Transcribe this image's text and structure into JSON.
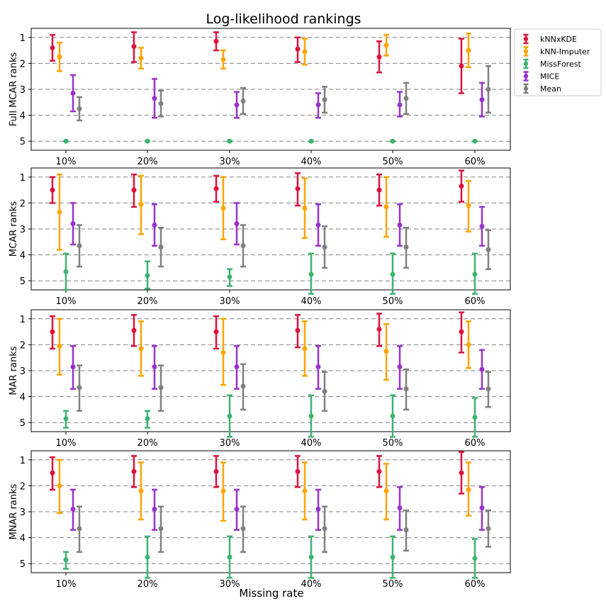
{
  "chart_data": {
    "type": "errorbar",
    "title": "Log-likelihood rankings",
    "xlabel": "Missing rate",
    "categories": [
      "10%",
      "20%",
      "30%",
      "40%",
      "50%",
      "60%"
    ],
    "yticks": [
      "1",
      "2",
      "3",
      "4",
      "5"
    ],
    "ylim": [
      5.35,
      0.65
    ],
    "y_inverted": true,
    "grid": "horizontal dashed",
    "legend_position": "outside top-right",
    "series": [
      {
        "name": "kNNxKDE",
        "color": "#dc143c"
      },
      {
        "name": "kNN-Imputer",
        "color": "#ffa500"
      },
      {
        "name": "MissForest",
        "color": "#3cb371"
      },
      {
        "name": "MICE",
        "color": "#9932cc"
      },
      {
        "name": "Mean",
        "color": "#808080"
      }
    ],
    "panels": [
      {
        "ylabel": "Full MCAR ranks",
        "data": [
          [
            [
              1.4,
              0.9,
              1.9
            ],
            [
              1.35,
              0.8,
              1.95
            ],
            [
              1.15,
              0.8,
              1.5
            ],
            [
              1.45,
              1.0,
              1.95
            ],
            [
              1.75,
              1.15,
              2.35
            ],
            [
              2.1,
              1.05,
              3.15
            ]
          ],
          [
            [
              1.75,
              1.2,
              2.3
            ],
            [
              1.8,
              1.4,
              2.2
            ],
            [
              1.85,
              1.5,
              2.2
            ],
            [
              1.55,
              1.05,
              2.05
            ],
            [
              1.3,
              0.9,
              1.7
            ],
            [
              1.5,
              0.85,
              2.15
            ]
          ],
          [
            [
              5.0,
              5.0,
              5.0
            ],
            [
              5.0,
              5.0,
              5.0
            ],
            [
              5.0,
              5.0,
              5.0
            ],
            [
              5.0,
              5.0,
              5.0
            ],
            [
              5.0,
              5.0,
              5.0
            ],
            [
              5.0,
              5.0,
              5.0
            ]
          ],
          [
            [
              3.15,
              2.45,
              3.85
            ],
            [
              3.35,
              2.6,
              4.1
            ],
            [
              3.6,
              3.1,
              4.1
            ],
            [
              3.6,
              3.15,
              4.1
            ],
            [
              3.6,
              3.1,
              4.05
            ],
            [
              3.4,
              2.75,
              4.05
            ]
          ],
          [
            [
              3.75,
              3.3,
              4.2
            ],
            [
              3.55,
              3.05,
              4.05
            ],
            [
              3.45,
              2.95,
              3.95
            ],
            [
              3.4,
              2.9,
              3.9
            ],
            [
              3.35,
              2.75,
              3.95
            ],
            [
              3.0,
              2.1,
              3.9
            ]
          ]
        ]
      },
      {
        "ylabel": "MCAR ranks",
        "data": [
          [
            [
              1.5,
              1.0,
              2.0
            ],
            [
              1.5,
              0.9,
              2.15
            ],
            [
              1.45,
              0.95,
              1.95
            ],
            [
              1.45,
              0.85,
              2.1
            ],
            [
              1.5,
              0.9,
              2.1
            ],
            [
              1.35,
              0.75,
              1.95
            ]
          ],
          [
            [
              2.35,
              0.9,
              3.8
            ],
            [
              2.05,
              0.95,
              3.2
            ],
            [
              2.2,
              1.0,
              3.4
            ],
            [
              2.2,
              1.05,
              3.35
            ],
            [
              2.15,
              1.0,
              3.3
            ],
            [
              2.1,
              1.15,
              3.1
            ]
          ],
          [
            [
              4.65,
              3.95,
              5.35
            ],
            [
              4.8,
              4.25,
              5.3
            ],
            [
              4.85,
              4.55,
              5.2
            ],
            [
              4.75,
              3.95,
              5.5
            ],
            [
              4.75,
              3.95,
              5.5
            ],
            [
              4.75,
              3.95,
              5.5
            ]
          ],
          [
            [
              2.8,
              2.0,
              3.6
            ],
            [
              2.85,
              2.05,
              3.65
            ],
            [
              2.8,
              2.0,
              3.6
            ],
            [
              2.85,
              2.05,
              3.65
            ],
            [
              2.85,
              2.05,
              3.65
            ],
            [
              2.9,
              2.15,
              3.65
            ]
          ],
          [
            [
              3.65,
              2.85,
              4.45
            ],
            [
              3.7,
              2.95,
              4.45
            ],
            [
              3.65,
              2.85,
              4.45
            ],
            [
              3.7,
              2.9,
              4.5
            ],
            [
              3.7,
              2.95,
              4.5
            ],
            [
              3.8,
              3.05,
              4.55
            ]
          ]
        ]
      },
      {
        "ylabel": "MAR ranks",
        "data": [
          [
            [
              1.5,
              0.9,
              2.15
            ],
            [
              1.45,
              0.85,
              2.05
            ],
            [
              1.5,
              0.9,
              2.15
            ],
            [
              1.45,
              0.85,
              2.1
            ],
            [
              1.4,
              0.8,
              2.05
            ],
            [
              1.5,
              0.75,
              2.3
            ]
          ],
          [
            [
              2.05,
              1.0,
              3.15
            ],
            [
              2.15,
              1.1,
              3.2
            ],
            [
              2.3,
              1.0,
              3.55
            ],
            [
              2.15,
              1.1,
              3.2
            ],
            [
              2.25,
              1.2,
              3.35
            ],
            [
              2.0,
              1.1,
              2.9
            ]
          ],
          [
            [
              4.85,
              4.55,
              5.2
            ],
            [
              4.85,
              4.55,
              5.2
            ],
            [
              4.75,
              3.95,
              5.55
            ],
            [
              4.75,
              3.95,
              5.55
            ],
            [
              4.75,
              3.95,
              5.55
            ],
            [
              4.8,
              4.05,
              5.55
            ]
          ],
          [
            [
              2.85,
              2.05,
              3.7
            ],
            [
              2.85,
              2.05,
              3.7
            ],
            [
              2.85,
              2.05,
              3.7
            ],
            [
              2.85,
              2.05,
              3.7
            ],
            [
              2.85,
              2.05,
              3.7
            ],
            [
              2.95,
              2.2,
              3.7
            ]
          ],
          [
            [
              3.65,
              2.8,
              4.55
            ],
            [
              3.65,
              2.8,
              4.55
            ],
            [
              3.6,
              2.75,
              4.5
            ],
            [
              3.8,
              3.05,
              4.55
            ],
            [
              3.7,
              2.95,
              4.5
            ],
            [
              3.7,
              3.05,
              4.4
            ]
          ]
        ]
      },
      {
        "ylabel": "MNAR ranks",
        "data": [
          [
            [
              1.5,
              0.9,
              2.15
            ],
            [
              1.45,
              0.85,
              2.05
            ],
            [
              1.45,
              0.85,
              2.05
            ],
            [
              1.45,
              0.85,
              2.05
            ],
            [
              1.45,
              0.85,
              2.05
            ],
            [
              1.5,
              0.7,
              2.3
            ]
          ],
          [
            [
              2.0,
              1.0,
              3.05
            ],
            [
              2.2,
              1.1,
              3.3
            ],
            [
              2.2,
              1.1,
              3.35
            ],
            [
              2.2,
              1.1,
              3.3
            ],
            [
              2.2,
              1.15,
              3.3
            ],
            [
              2.15,
              1.1,
              3.15
            ]
          ],
          [
            [
              4.85,
              4.55,
              5.2
            ],
            [
              4.75,
              3.95,
              5.55
            ],
            [
              4.75,
              3.95,
              5.55
            ],
            [
              4.75,
              3.95,
              5.55
            ],
            [
              4.75,
              3.95,
              5.55
            ],
            [
              4.8,
              4.05,
              5.55
            ]
          ],
          [
            [
              2.9,
              2.15,
              3.7
            ],
            [
              2.9,
              2.15,
              3.7
            ],
            [
              2.9,
              2.15,
              3.7
            ],
            [
              2.9,
              2.15,
              3.7
            ],
            [
              2.85,
              2.05,
              3.7
            ],
            [
              2.85,
              2.05,
              3.7
            ]
          ],
          [
            [
              3.65,
              2.8,
              4.55
            ],
            [
              3.65,
              2.8,
              4.55
            ],
            [
              3.65,
              2.8,
              4.55
            ],
            [
              3.65,
              2.8,
              4.55
            ],
            [
              3.7,
              2.95,
              4.5
            ],
            [
              3.65,
              2.95,
              4.35
            ]
          ]
        ]
      }
    ]
  }
}
